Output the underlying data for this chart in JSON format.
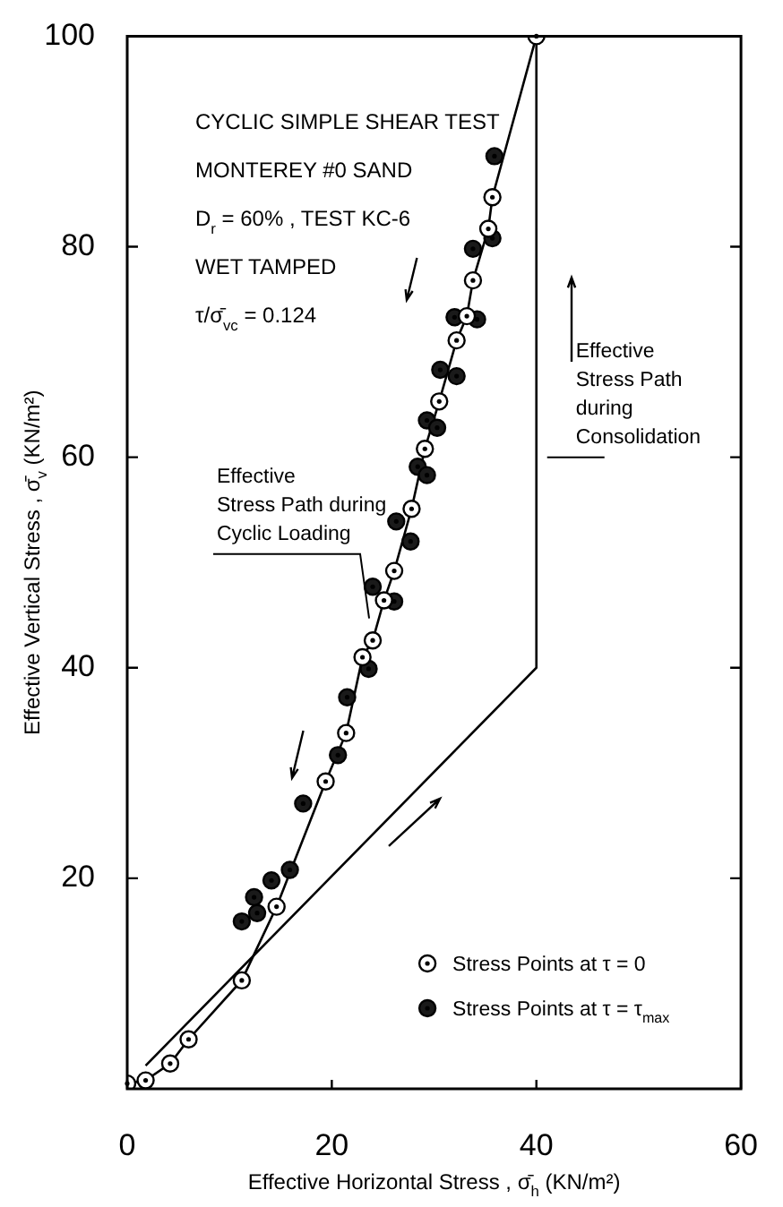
{
  "chart_data": {
    "type": "scatter",
    "xlabel": "Effective Horizontal Stress , σ̄$_{h}$ (KN/m²)",
    "ylabel": "Effective Vertical Stress , σ̄$_{v}$ (KN/m²)",
    "xlim": [
      0,
      60
    ],
    "ylim": [
      0,
      100
    ],
    "xticks": [
      0,
      20,
      40,
      60
    ],
    "yticks": [
      20,
      40,
      60,
      80,
      100
    ],
    "grid": false,
    "legend": "bottom right",
    "marker": "circle",
    "series": [
      {
        "type": "line",
        "marker": "none",
        "color": "#000000",
        "x": [
          1.8,
          40,
          40
        ],
        "values": [
          2.2,
          40,
          100
        ]
      },
      {
        "type": "line",
        "marker": "none",
        "color": "#000000",
        "x": [
          0,
          1.8,
          4.2,
          6,
          11.2,
          14.6,
          19.4,
          21.4,
          23,
          24,
          25.1,
          26.1,
          27.8,
          29.1,
          30.5,
          32.2,
          33.2,
          33.8,
          35.3,
          35.7,
          40
        ],
        "values": [
          0.5,
          0.8,
          2.4,
          4.7,
          10.3,
          17.3,
          29.2,
          33.8,
          41,
          42.6,
          46.4,
          49.2,
          55.1,
          60.8,
          65.3,
          71.1,
          73.4,
          76.8,
          81.7,
          84.7,
          100
        ]
      },
      {
        "type": "scatter",
        "name": "Stress Points at τ = 0",
        "color": "#ffffff",
        "x": [
          0,
          1.8,
          4.2,
          6,
          11.2,
          14.6,
          19.4,
          21.4,
          23,
          24,
          25.1,
          26.1,
          27.8,
          29.1,
          30.5,
          32.2,
          33.2,
          33.8,
          35.3,
          35.7,
          40
        ],
        "values": [
          0.5,
          0.8,
          2.4,
          4.7,
          10.3,
          17.3,
          29.2,
          33.8,
          41,
          42.6,
          46.4,
          49.2,
          55.1,
          60.8,
          65.3,
          71.1,
          73.4,
          76.8,
          81.7,
          84.7,
          100
        ]
      },
      {
        "type": "scatter",
        "name": "Stress Points at τ = τ$_{max}$",
        "color": "#1a1a1a",
        "x": [
          11.2,
          12.4,
          12.7,
          14.1,
          15.9,
          17.2,
          20.6,
          21.5,
          23.6,
          24,
          26.1,
          26.3,
          27.7,
          28.4,
          29.3,
          29.3,
          30.3,
          30.6,
          32.2,
          32,
          34.2,
          33.8,
          35.7,
          35.9
        ],
        "values": [
          15.9,
          18.2,
          16.7,
          19.8,
          20.8,
          27.1,
          31.7,
          37.2,
          39.9,
          47.7,
          46.3,
          53.9,
          52,
          59.1,
          58.3,
          63.5,
          62.8,
          68.3,
          67.7,
          73.3,
          73.1,
          79.8,
          80.8,
          88.6
        ]
      }
    ],
    "annotations": [
      "CYCLIC SIMPLE SHEAR TEST",
      "MONTEREY #0 SAND",
      "D$_{r}$ = 60% , TEST KC-6",
      "WET TAMPED",
      "τ/σ̄$_{vc}$ = 0.124",
      {
        "text": "Effective\nStress Path during\nCyclic Loading",
        "x": 24,
        "y": 44
      },
      {
        "text": "Effective\nStress Path\nduring\nConsolidation",
        "x": 40,
        "y": 60
      }
    ]
  }
}
